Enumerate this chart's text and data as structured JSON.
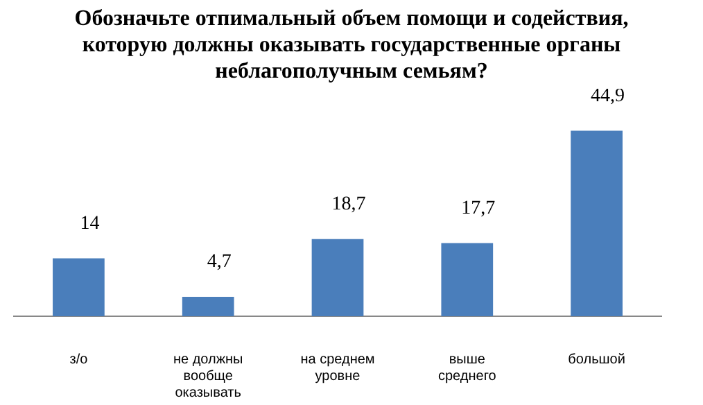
{
  "chart_data": {
    "type": "bar",
    "title": "Обозначьте отпимальный объем помощи и содействия, которую должны оказывать государственные органы неблагополучным семьям?",
    "categories": [
      "з/о",
      "не должны вообще оказывать",
      "на среднем уровне",
      "выше среднего",
      "большой"
    ],
    "values": [
      14,
      4.7,
      18.7,
      17.7,
      44.9
    ],
    "value_labels": [
      "14",
      "4,7",
      "18,7",
      "17,7",
      "44,9"
    ],
    "color": "#4a7ebb",
    "grid": false,
    "legend": false,
    "tick_labels": "x"
  }
}
